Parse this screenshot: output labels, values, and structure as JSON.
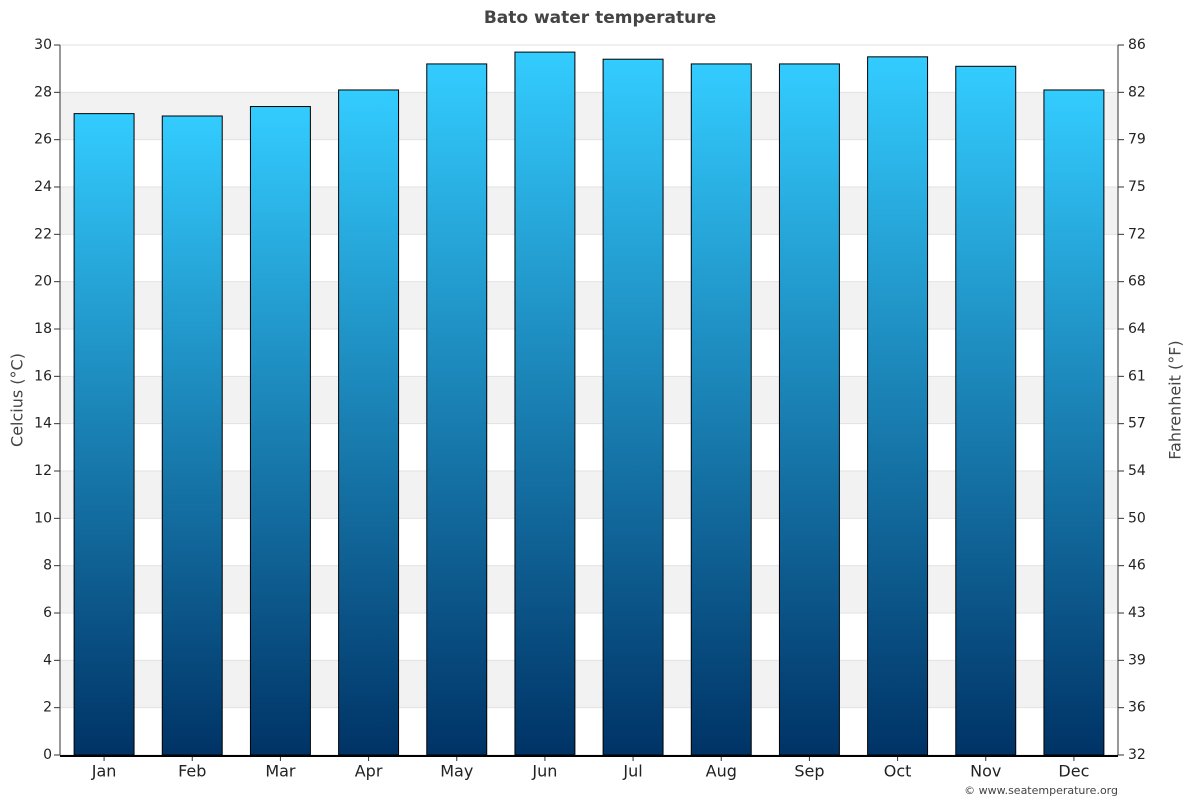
{
  "chart_data": {
    "type": "bar",
    "title": "Bato water temperature",
    "y_label": "Celcius (°C)",
    "y2_label": "Fahrenheit (°F)",
    "credit": "© www.seatemperature.org",
    "categories": [
      "Jan",
      "Feb",
      "Mar",
      "Apr",
      "May",
      "Jun",
      "Jul",
      "Aug",
      "Sep",
      "Oct",
      "Nov",
      "Dec"
    ],
    "values": [
      27.1,
      27.0,
      27.4,
      28.1,
      29.2,
      29.7,
      29.4,
      29.2,
      29.2,
      29.5,
      29.1,
      28.1
    ],
    "color": [
      "#33ccff",
      "#003366"
    ],
    "ylim": [
      0,
      30
    ],
    "yticks": [
      0,
      2,
      4,
      6,
      8,
      10,
      12,
      14,
      16,
      18,
      20,
      22,
      24,
      26,
      28,
      30
    ],
    "y2lim": [
      32,
      86
    ],
    "y2ticks": [
      32,
      {
        "value": 35.6,
        "label": "36"
      },
      {
        "value": 39.2,
        "label": "39"
      },
      {
        "value": 42.8,
        "label": "43"
      },
      {
        "value": 46.4,
        "label": "46"
      },
      50,
      {
        "value": 53.6,
        "label": "54"
      },
      {
        "value": 57.2,
        "label": "57"
      },
      {
        "value": 60.8,
        "label": "61"
      },
      {
        "value": 64.4,
        "label": "64"
      },
      68,
      {
        "value": 71.6,
        "label": "72"
      },
      {
        "value": 75.2,
        "label": "75"
      },
      {
        "value": 78.8,
        "label": "79"
      },
      {
        "value": 82.4,
        "label": "82"
      },
      86
    ],
    "grid": true
  }
}
